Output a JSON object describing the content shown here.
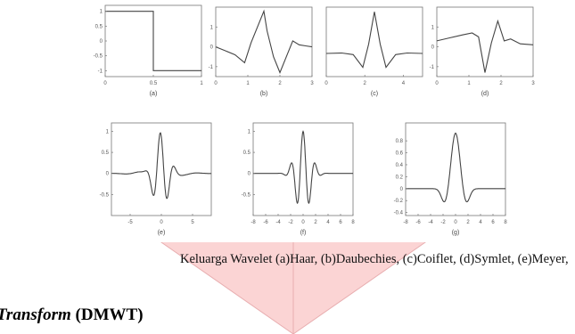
{
  "caption": "Keluarga Wavelet (a)Haar, (b)Daubechies, (c)Coiflet, (d)Symlet, (e)Meyer,",
  "heading": {
    "italic_part": "t Transform",
    "bold_part": " (DMWT)"
  },
  "colors": {
    "arrow_fill": "#fbd4d4",
    "arrow_stroke": "#e8aeb0",
    "curve": "#444444",
    "axes": "#777777"
  },
  "chart_data": [
    {
      "type": "line",
      "label": "(a)",
      "wavelet": "Haar",
      "xlim": [
        0,
        1
      ],
      "ylim": [
        -1.2,
        1.2
      ],
      "xticks": [
        "0",
        "0.5",
        "1"
      ],
      "yticks": [
        "1",
        "0.5",
        "0",
        "-0.5",
        "-1"
      ],
      "x": [
        0,
        0.5,
        0.5,
        1
      ],
      "y": [
        1,
        1,
        -1,
        -1
      ]
    },
    {
      "type": "line",
      "label": "(b)",
      "wavelet": "Daubechies",
      "xlim": [
        0,
        3
      ],
      "ylim": [
        -1.5,
        2
      ],
      "xticks": [
        "0",
        "1",
        "2",
        "3"
      ],
      "yticks": [
        "1",
        "0",
        "-1"
      ],
      "x": [
        0,
        0.3,
        0.6,
        0.9,
        1.1,
        1.3,
        1.5,
        1.6,
        1.8,
        2.0,
        2.2,
        2.4,
        2.6,
        2.8,
        3.0
      ],
      "y": [
        0,
        -0.2,
        -0.4,
        -0.8,
        0.2,
        1.0,
        1.8,
        0.8,
        -0.5,
        -1.3,
        -0.5,
        0.3,
        0.1,
        0.05,
        0
      ]
    },
    {
      "type": "line",
      "label": "(c)",
      "wavelet": "Coiflet",
      "xlim": [
        0,
        5
      ],
      "ylim": [
        -1,
        2
      ],
      "xticks": [
        "0",
        "2",
        "4"
      ],
      "yticks": [],
      "x": [
        0,
        0.8,
        1.4,
        1.9,
        2.2,
        2.5,
        2.8,
        3.1,
        3.6,
        4.2,
        5.0
      ],
      "y": [
        0,
        0.02,
        -0.05,
        -0.6,
        0.4,
        1.8,
        0.4,
        -0.6,
        -0.05,
        0.02,
        0
      ]
    },
    {
      "type": "line",
      "label": "(d)",
      "wavelet": "Symlet",
      "xlim": [
        0,
        3
      ],
      "ylim": [
        -1.5,
        2
      ],
      "xticks": [
        "0",
        "1",
        "2",
        "3"
      ],
      "yticks": [
        "1",
        "0",
        "-1"
      ],
      "x": [
        0,
        0.4,
        0.8,
        1.1,
        1.3,
        1.5,
        1.7,
        1.9,
        2.1,
        2.3,
        2.6,
        3.0
      ],
      "y": [
        0.3,
        0.45,
        0.6,
        0.7,
        0.5,
        -1.3,
        0.2,
        1.3,
        0.3,
        0.4,
        0.15,
        0.1
      ]
    },
    {
      "type": "line",
      "label": "(e)",
      "wavelet": "Meyer",
      "xlim": [
        -8,
        8
      ],
      "ylim": [
        -1,
        1.2
      ],
      "xticks": [
        "-5",
        "0",
        "5"
      ],
      "yticks": [
        "1",
        "0.5",
        "0",
        "-0.5"
      ]
    },
    {
      "type": "line",
      "label": "(f)",
      "xlim": [
        -8,
        8
      ],
      "ylim": [
        -1,
        1.2
      ],
      "xticks": [
        "-8",
        "-6",
        "-4",
        "-2",
        "0",
        "2",
        "4",
        "6",
        "8"
      ],
      "yticks": [
        "1",
        "0.5",
        "0",
        "-0.5"
      ]
    },
    {
      "type": "line",
      "label": "(g)",
      "xlim": [
        -8,
        8
      ],
      "ylim": [
        -0.45,
        1.1
      ],
      "xticks": [
        "-8",
        "-6",
        "-4",
        "-2",
        "0",
        "2",
        "4",
        "6",
        "8"
      ],
      "yticks": [
        "0.8",
        "0.6",
        "0.4",
        "0.2",
        "0",
        "-0.2",
        "-0.4"
      ]
    }
  ]
}
